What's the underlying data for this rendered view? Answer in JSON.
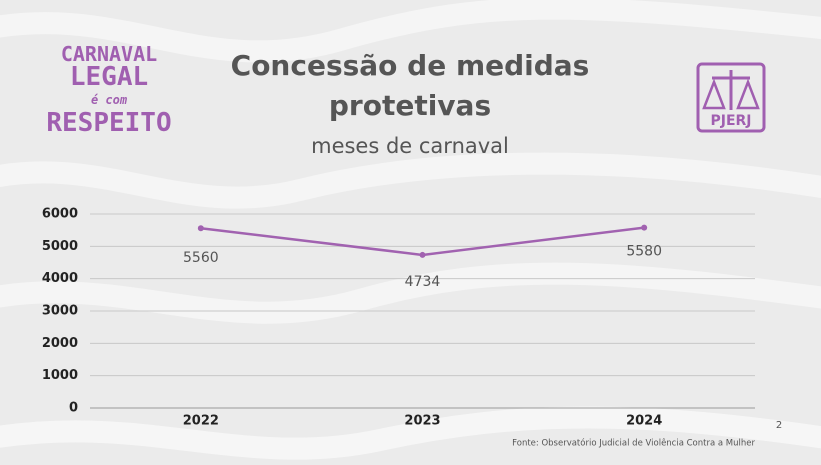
{
  "logo": {
    "line1": "CARNAVAL",
    "line2": "LEGAL",
    "line3": "é com",
    "line4": "RESPEITO"
  },
  "badge": "PJERJ",
  "chart_data": {
    "type": "line",
    "title": "Concessão de medidas protetivas",
    "subtitle": "meses de carnaval",
    "categories": [
      "2022",
      "2023",
      "2024"
    ],
    "values": [
      5560,
      4734,
      5580
    ],
    "color": "#a162b0",
    "ylim": [
      0,
      6000
    ],
    "yticks": [
      0,
      1000,
      2000,
      3000,
      4000,
      5000,
      6000
    ],
    "grid": true,
    "source": "Fonte: Observatório Judicial de Violência Contra a Mulher"
  },
  "page_number": "2"
}
